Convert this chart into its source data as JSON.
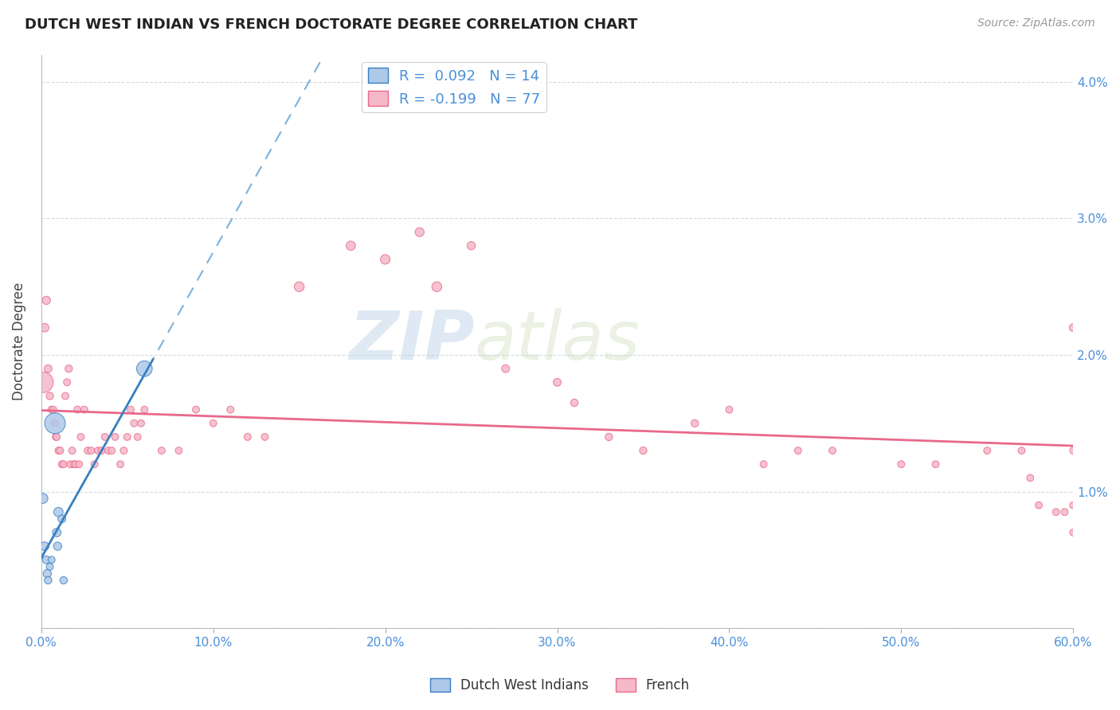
{
  "title": "DUTCH WEST INDIAN VS FRENCH DOCTORATE DEGREE CORRELATION CHART",
  "source": "Source: ZipAtlas.com",
  "ylabel_label": "Doctorate Degree",
  "xlim": [
    0.0,
    60.0
  ],
  "ylim": [
    0.0,
    4.2
  ],
  "xticks": [
    0.0,
    10.0,
    20.0,
    30.0,
    40.0,
    50.0,
    60.0
  ],
  "xtick_labels": [
    "0.0%",
    "10.0%",
    "20.0%",
    "30.0%",
    "40.0%",
    "50.0%",
    "60.0%"
  ],
  "yticks": [
    0.0,
    1.0,
    2.0,
    3.0,
    4.0
  ],
  "ytick_labels": [
    "",
    "1.0%",
    "2.0%",
    "3.0%",
    "4.0%"
  ],
  "legend_r1": "R =  0.092   N = 14",
  "legend_r2": "R = -0.199   N = 77",
  "color_blue": "#adc8e8",
  "color_blue_line": "#5a9fd4",
  "color_blue_line_solid": "#3a7fc1",
  "color_pink": "#f5b8c8",
  "color_pink_line": "#e8698a",
  "color_axis_text": "#4a90d9",
  "watermark_zip": "ZIP",
  "watermark_atlas": "atlas",
  "dutch_x": [
    0.1,
    0.2,
    0.3,
    0.35,
    0.4,
    0.5,
    0.6,
    0.8,
    0.9,
    0.95,
    1.0,
    1.2,
    1.3,
    6.0
  ],
  "dutch_y": [
    0.95,
    0.6,
    0.5,
    0.4,
    0.35,
    0.45,
    0.5,
    1.5,
    0.7,
    0.6,
    0.85,
    0.8,
    0.35,
    1.9
  ],
  "dutch_size": [
    80,
    60,
    50,
    55,
    45,
    40,
    40,
    350,
    60,
    55,
    70,
    50,
    45,
    200
  ],
  "french_x": [
    0.1,
    0.2,
    0.3,
    0.4,
    0.5,
    0.6,
    0.7,
    0.8,
    0.85,
    0.9,
    1.0,
    1.1,
    1.2,
    1.3,
    1.4,
    1.5,
    1.6,
    1.7,
    1.8,
    1.9,
    2.0,
    2.1,
    2.2,
    2.3,
    2.5,
    2.7,
    2.9,
    3.1,
    3.3,
    3.5,
    3.7,
    3.9,
    4.1,
    4.3,
    4.6,
    4.8,
    5.0,
    5.2,
    5.4,
    5.6,
    5.8,
    6.0,
    7.0,
    8.0,
    9.0,
    10.0,
    11.0,
    12.0,
    13.0,
    15.0,
    18.0,
    20.0,
    22.0,
    23.0,
    25.0,
    27.0,
    30.0,
    31.0,
    33.0,
    35.0,
    38.0,
    40.0,
    42.0,
    44.0,
    46.0,
    50.0,
    52.0,
    55.0,
    57.0,
    57.5,
    58.0,
    59.0,
    59.5,
    60.0,
    60.0,
    60.0,
    60.0
  ],
  "french_y": [
    1.8,
    2.2,
    2.4,
    1.9,
    1.7,
    1.6,
    1.6,
    1.5,
    1.4,
    1.4,
    1.3,
    1.3,
    1.2,
    1.2,
    1.7,
    1.8,
    1.9,
    1.2,
    1.3,
    1.2,
    1.2,
    1.6,
    1.2,
    1.4,
    1.6,
    1.3,
    1.3,
    1.2,
    1.3,
    1.3,
    1.4,
    1.3,
    1.3,
    1.4,
    1.2,
    1.3,
    1.4,
    1.6,
    1.5,
    1.4,
    1.5,
    1.6,
    1.3,
    1.3,
    1.6,
    1.5,
    1.6,
    1.4,
    1.4,
    2.5,
    2.8,
    2.7,
    2.9,
    2.5,
    2.8,
    1.9,
    1.8,
    1.65,
    1.4,
    1.3,
    1.5,
    1.6,
    1.2,
    1.3,
    1.3,
    1.2,
    1.2,
    1.3,
    1.3,
    1.1,
    0.9,
    0.85,
    0.85,
    2.2,
    1.3,
    0.9,
    0.7
  ],
  "french_size": [
    350,
    60,
    55,
    50,
    45,
    40,
    40,
    40,
    40,
    40,
    40,
    40,
    40,
    40,
    40,
    40,
    45,
    40,
    40,
    40,
    40,
    40,
    40,
    40,
    40,
    40,
    40,
    40,
    40,
    40,
    40,
    40,
    40,
    40,
    40,
    40,
    40,
    40,
    40,
    40,
    40,
    40,
    40,
    40,
    40,
    40,
    40,
    40,
    40,
    80,
    70,
    75,
    65,
    80,
    55,
    50,
    50,
    45,
    45,
    45,
    45,
    40,
    40,
    40,
    40,
    40,
    40,
    40,
    40,
    40,
    40,
    40,
    40,
    50,
    40,
    40,
    40
  ]
}
